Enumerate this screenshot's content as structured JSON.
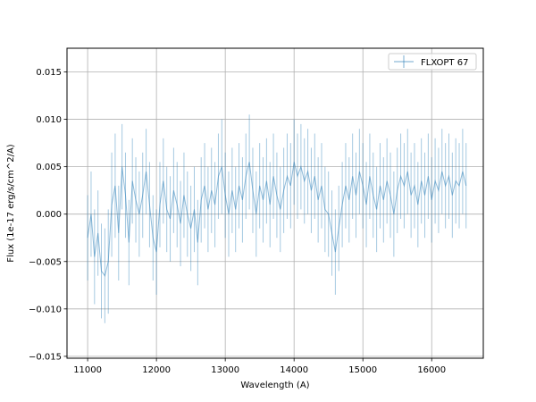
{
  "chart_data": {
    "type": "line",
    "title": "",
    "xlabel": "Wavelength (A)",
    "ylabel": "Flux (1e-17 erg/s/cm^2/A)",
    "xlim": [
      10700,
      16750
    ],
    "ylim": [
      -0.0152,
      0.0175
    ],
    "xticks": [
      11000,
      12000,
      13000,
      14000,
      15000,
      16000
    ],
    "yticks": [
      -0.015,
      -0.01,
      -0.005,
      0.0,
      0.005,
      0.01,
      0.015
    ],
    "xtick_labels": [
      "11000",
      "12000",
      "13000",
      "14000",
      "15000",
      "16000"
    ],
    "ytick_labels": [
      "−0.015",
      "−0.010",
      "−0.005",
      "0.000",
      "0.005",
      "0.010",
      "0.015"
    ],
    "grid": true,
    "legend_position": "top-right",
    "series": [
      {
        "name": "FLXOPT 67",
        "color": "#1f77b4",
        "style": "errorbar",
        "points": [
          [
            11000,
            -0.0025,
            0.0045
          ],
          [
            11050,
            0.0,
            0.0045
          ],
          [
            11100,
            -0.0045,
            0.005
          ],
          [
            11150,
            -0.002,
            0.0045
          ],
          [
            11200,
            -0.006,
            0.005
          ],
          [
            11250,
            -0.0065,
            0.005
          ],
          [
            11300,
            -0.005,
            0.0055
          ],
          [
            11350,
            0.001,
            0.0055
          ],
          [
            11400,
            0.003,
            0.0055
          ],
          [
            11450,
            -0.002,
            0.005
          ],
          [
            11500,
            0.005,
            0.0045
          ],
          [
            11550,
            0.002,
            0.0045
          ],
          [
            11600,
            -0.003,
            0.0045
          ],
          [
            11650,
            0.0035,
            0.0045
          ],
          [
            11700,
            0.0015,
            0.0045
          ],
          [
            11750,
            0.0,
            0.0045
          ],
          [
            11800,
            0.002,
            0.0045
          ],
          [
            11850,
            0.0045,
            0.0045
          ],
          [
            11900,
            0.001,
            0.0045
          ],
          [
            11950,
            -0.0025,
            0.0045
          ],
          [
            12000,
            -0.004,
            0.0045
          ],
          [
            12050,
            0.001,
            0.0045
          ],
          [
            12100,
            0.0035,
            0.0045
          ],
          [
            12150,
            0.0005,
            0.0045
          ],
          [
            12200,
            -0.0005,
            0.0045
          ],
          [
            12250,
            0.0025,
            0.0045
          ],
          [
            12300,
            0.001,
            0.0045
          ],
          [
            12350,
            -0.001,
            0.0045
          ],
          [
            12400,
            0.002,
            0.0045
          ],
          [
            12450,
            0.0,
            0.0045
          ],
          [
            12500,
            -0.0015,
            0.0045
          ],
          [
            12550,
            0.0005,
            0.0045
          ],
          [
            12600,
            -0.003,
            0.0045
          ],
          [
            12650,
            0.0015,
            0.0045
          ],
          [
            12700,
            0.003,
            0.0045
          ],
          [
            12750,
            0.0005,
            0.0045
          ],
          [
            12800,
            0.0025,
            0.0045
          ],
          [
            12850,
            0.001,
            0.0045
          ],
          [
            12900,
            0.004,
            0.0045
          ],
          [
            12950,
            0.005,
            0.005
          ],
          [
            13000,
            0.002,
            0.0045
          ],
          [
            13050,
            0.0,
            0.0045
          ],
          [
            13100,
            0.0025,
            0.0045
          ],
          [
            13150,
            0.0005,
            0.0045
          ],
          [
            13200,
            0.003,
            0.0045
          ],
          [
            13250,
            0.0015,
            0.0045
          ],
          [
            13300,
            0.004,
            0.0045
          ],
          [
            13350,
            0.0055,
            0.005
          ],
          [
            13400,
            0.0025,
            0.0045
          ],
          [
            13450,
            0.0,
            0.0045
          ],
          [
            13500,
            0.003,
            0.0045
          ],
          [
            13550,
            0.0015,
            0.0045
          ],
          [
            13600,
            0.0035,
            0.0045
          ],
          [
            13650,
            0.001,
            0.0045
          ],
          [
            13700,
            0.004,
            0.0045
          ],
          [
            13750,
            0.002,
            0.0045
          ],
          [
            13800,
            0.0005,
            0.0045
          ],
          [
            13850,
            0.0025,
            0.0045
          ],
          [
            13900,
            0.004,
            0.0045
          ],
          [
            13950,
            0.003,
            0.0045
          ],
          [
            14000,
            0.0055,
            0.0045
          ],
          [
            14050,
            0.004,
            0.0045
          ],
          [
            14100,
            0.005,
            0.0045
          ],
          [
            14150,
            0.0035,
            0.0045
          ],
          [
            14200,
            0.0045,
            0.0045
          ],
          [
            14250,
            0.0025,
            0.0045
          ],
          [
            14300,
            0.004,
            0.0045
          ],
          [
            14350,
            0.0015,
            0.0045
          ],
          [
            14400,
            0.003,
            0.0045
          ],
          [
            14450,
            0.0005,
            0.0045
          ],
          [
            14500,
            0.0,
            0.0045
          ],
          [
            14550,
            -0.002,
            0.0045
          ],
          [
            14600,
            -0.004,
            0.0045
          ],
          [
            14650,
            -0.0015,
            0.0045
          ],
          [
            14700,
            0.001,
            0.0045
          ],
          [
            14750,
            0.003,
            0.0045
          ],
          [
            14800,
            0.0015,
            0.0045
          ],
          [
            14850,
            0.004,
            0.0045
          ],
          [
            14900,
            0.002,
            0.0045
          ],
          [
            14950,
            0.0045,
            0.0045
          ],
          [
            15000,
            0.003,
            0.0045
          ],
          [
            15050,
            0.001,
            0.0045
          ],
          [
            15100,
            0.004,
            0.0045
          ],
          [
            15150,
            0.002,
            0.0045
          ],
          [
            15200,
            0.0005,
            0.0045
          ],
          [
            15250,
            0.003,
            0.0045
          ],
          [
            15300,
            0.0015,
            0.0045
          ],
          [
            15350,
            0.0035,
            0.0045
          ],
          [
            15400,
            0.002,
            0.0045
          ],
          [
            15450,
            0.0,
            0.0045
          ],
          [
            15500,
            0.0025,
            0.0045
          ],
          [
            15550,
            0.004,
            0.0045
          ],
          [
            15600,
            0.003,
            0.0045
          ],
          [
            15650,
            0.0045,
            0.0045
          ],
          [
            15700,
            0.002,
            0.0045
          ],
          [
            15750,
            0.003,
            0.0045
          ],
          [
            15800,
            0.001,
            0.0045
          ],
          [
            15850,
            0.0035,
            0.0045
          ],
          [
            15900,
            0.002,
            0.0045
          ],
          [
            15950,
            0.004,
            0.0045
          ],
          [
            16000,
            0.0015,
            0.0045
          ],
          [
            16050,
            0.0035,
            0.0045
          ],
          [
            16100,
            0.0025,
            0.0045
          ],
          [
            16150,
            0.0045,
            0.0045
          ],
          [
            16200,
            0.003,
            0.0045
          ],
          [
            16250,
            0.004,
            0.0045
          ],
          [
            16300,
            0.002,
            0.0045
          ],
          [
            16350,
            0.0035,
            0.0045
          ],
          [
            16400,
            0.003,
            0.0045
          ],
          [
            16450,
            0.0045,
            0.0045
          ],
          [
            16500,
            0.003,
            0.0045
          ]
        ]
      }
    ]
  }
}
